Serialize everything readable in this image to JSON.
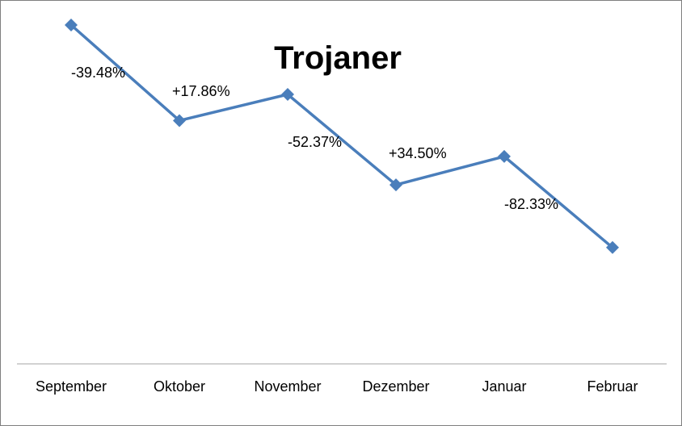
{
  "chart_data": {
    "type": "line",
    "title": "Trojaner",
    "xlabel": "",
    "ylabel": "",
    "categories": [
      "September",
      "Oktober",
      "November",
      "Dezember",
      "Januar",
      "Februar"
    ],
    "series": [
      {
        "values": [
          100,
          60.52,
          71.33,
          33.97,
          45.69,
          8.07
        ]
      }
    ],
    "data_labels": [
      "",
      "-39.48%",
      "+17.86%",
      "-52.37%",
      "+34.50%",
      "-82.33%"
    ],
    "ylim": [
      -40,
      110
    ],
    "y_axis_visible": false,
    "grid": false,
    "legend": "none",
    "colors": {
      "line": "#4a7ebb",
      "marker": "#4a7ebb",
      "axis": "#a6a6a6"
    },
    "marker": "diamond"
  }
}
